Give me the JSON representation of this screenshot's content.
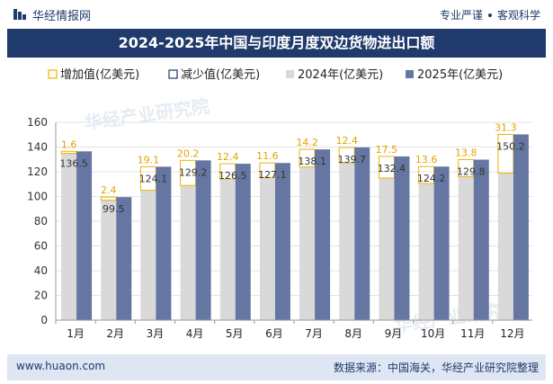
{
  "header": {
    "brand": "华经情报网",
    "slogan_left": "专业严谨",
    "slogan_right": "客观科学"
  },
  "title": "2024-2025年中国与印度月度双边货物进出口额",
  "legend": [
    {
      "name": "增加值(亿美元)",
      "type": "increase"
    },
    {
      "name": "减少值(亿美元)",
      "type": "decrease"
    },
    {
      "name": "2024年(亿美元)",
      "type": "series2024"
    },
    {
      "name": "2025年(亿美元)",
      "type": "series2025"
    }
  ],
  "watermark": "华经产业研究院",
  "footer": {
    "url": "www.huaon.com",
    "source": "数据来源：中国海关，华经产业研究院整理"
  },
  "colors": {
    "brand": "#1f3a6b",
    "series2024": "#d9d9d9",
    "series2025": "#6676a3",
    "increase_border": "#f0b400",
    "decrease_border": "#1f3a6b",
    "label": "#333333",
    "increase_label": "#e0a400"
  },
  "chart_data": {
    "type": "bar",
    "categories": [
      "1月",
      "2月",
      "3月",
      "4月",
      "5月",
      "6月",
      "7月",
      "8月",
      "9月",
      "10月",
      "11月",
      "12月"
    ],
    "series": [
      {
        "name": "2024年(亿美元)",
        "values": [
          134.9,
          97.1,
          105.0,
          109.0,
          114.1,
          115.5,
          123.9,
          127.3,
          114.9,
          110.6,
          116.0,
          118.9
        ]
      },
      {
        "name": "2025年(亿美元)",
        "values": [
          136.5,
          99.5,
          124.1,
          129.2,
          126.5,
          127.1,
          138.1,
          139.7,
          132.4,
          124.2,
          129.8,
          150.2
        ]
      },
      {
        "name": "增加值(亿美元)",
        "values": [
          1.6,
          2.4,
          19.1,
          20.2,
          12.4,
          11.6,
          14.2,
          12.4,
          17.5,
          13.6,
          13.8,
          31.3
        ]
      }
    ],
    "ylim": [
      0,
      160
    ],
    "yticks": [
      0,
      20,
      40,
      60,
      80,
      100,
      120,
      140,
      160
    ],
    "grid": true,
    "legend_position": "top"
  }
}
